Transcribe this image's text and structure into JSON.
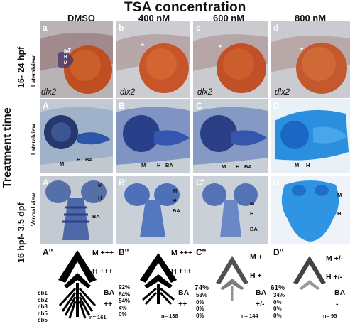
{
  "title": "TSA concentration",
  "columns": [
    "DMSO",
    "400 nM",
    "600 nM",
    "800 nM"
  ],
  "row_axis_label": "Treatment time",
  "row_groups": [
    "16- 24 hpf",
    "16 hpf- 3.5 dpf"
  ],
  "view_labels": {
    "lateral": "Lateralview",
    "ventral": "Ventral view"
  },
  "gene": "dlx2",
  "panel_labels": {
    "row1": [
      "a",
      "b",
      "c",
      "d"
    ],
    "row2": [
      "A",
      "B",
      "C",
      "D"
    ],
    "row3": [
      "A'",
      "B'",
      "C'",
      "D'"
    ],
    "row4": [
      "A''",
      "B''",
      "C''",
      "D''"
    ]
  },
  "row1_marks": {
    "star": "*",
    "tags": [
      "BA",
      "H",
      "M"
    ]
  },
  "row2_marks": {
    "A": [
      "M",
      "H",
      "BA"
    ],
    "B": [
      "M",
      "H",
      "BA"
    ],
    "C": [
      "M",
      "H",
      "BA"
    ],
    "D": [
      "M",
      "H"
    ]
  },
  "row3_marks": {
    "A": [
      "M",
      "H",
      "BA"
    ],
    "B": [
      "M",
      "H",
      "BA"
    ],
    "C": [
      "M",
      "H",
      "BA"
    ],
    "D": [
      "M",
      "H"
    ]
  },
  "cartilage_rows": [
    "cb1",
    "cb2",
    "cb3",
    "cb5",
    "cb5"
  ],
  "row4": [
    {
      "M": "M +++",
      "H": "H +++",
      "BA": "BA",
      "BA2": "++",
      "n": "n= 161",
      "pcts": [],
      "top_pct": ""
    },
    {
      "M": "M +++",
      "H": "H +++",
      "BA": "BA",
      "BA2": "++",
      "n": "n= 138",
      "pcts": [
        "92%",
        "84%",
        "54%",
        "4%",
        "0%"
      ],
      "top_pct": ""
    },
    {
      "M": "M +",
      "H": "H +",
      "BA": "BA",
      "BA2": "+/-",
      "n": "n= 144",
      "pcts": [
        "53%",
        "0%",
        "0%",
        "0%"
      ],
      "top_pct": "74%"
    },
    {
      "M": "M +/-",
      "H": "H +/-",
      "BA": "BA",
      "BA2": "-",
      "n": "n= 95",
      "pcts": [
        "34%",
        "0%",
        "0%",
        "0%"
      ],
      "top_pct": "61%"
    }
  ],
  "colors": {
    "embryo_orange": "#c8552a",
    "stain_blue": "#2f5fb8",
    "bright_blue": "#2b8fe0",
    "bg_gray": "#b9bcc2"
  }
}
